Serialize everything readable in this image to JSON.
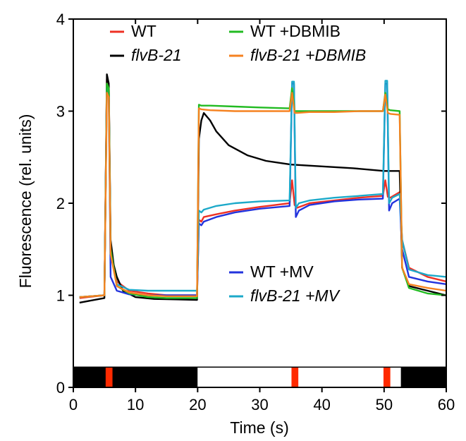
{
  "chart_data": {
    "type": "line",
    "title": "",
    "xlabel": "Time (s)",
    "ylabel": "Fluorescence (rel. units)",
    "xlim": [
      0,
      60
    ],
    "ylim": [
      0,
      4
    ],
    "xticks": [
      0,
      10,
      20,
      30,
      40,
      50,
      60
    ],
    "yticks": [
      0,
      1,
      2,
      3,
      4
    ],
    "grid": false,
    "legend": [
      {
        "series": "WT",
        "parts": [
          {
            "text": "WT",
            "italic": false
          }
        ],
        "color": "#ee3124"
      },
      {
        "series": "flvB-21",
        "parts": [
          {
            "text": "flvB-21",
            "italic": true
          }
        ],
        "color": "#000000"
      },
      {
        "series": "WT +DBMIB",
        "parts": [
          {
            "text": "WT +DBMIB",
            "italic": false
          }
        ],
        "color": "#22bb22"
      },
      {
        "series": "flvB-21 +DBMIB",
        "parts": [
          {
            "text": "flvB-21 +DBMIB",
            "italic": true
          }
        ],
        "color": "#f58220"
      },
      {
        "series": "WT +MV",
        "parts": [
          {
            "text": "WT +MV",
            "italic": false
          }
        ],
        "color": "#2233dd"
      },
      {
        "series": "flvB-21 +MV",
        "parts": [
          {
            "text": "flvB-21 +",
            "italic": true
          },
          {
            "text": "MV",
            "italic": true
          }
        ],
        "color": "#1ca9c9"
      }
    ],
    "series": [
      {
        "name": "WT",
        "color": "#ee3124",
        "x": [
          1,
          5,
          5.4,
          5.7,
          6,
          7,
          9,
          12,
          15,
          19.9,
          20.2,
          20.6,
          21,
          23,
          26,
          30,
          34.8,
          35.2,
          35.6,
          36,
          38,
          42,
          46,
          49.8,
          50.2,
          50.6,
          51,
          52.5,
          52.9,
          54,
          57,
          60
        ],
        "y": [
          0.97,
          1.0,
          3.35,
          3.3,
          1.5,
          1.15,
          1.05,
          1.02,
          1.0,
          1.0,
          1.82,
          1.8,
          1.85,
          1.88,
          1.92,
          1.96,
          2.0,
          2.25,
          1.98,
          1.95,
          2.0,
          2.03,
          2.06,
          2.08,
          2.25,
          2.07,
          2.06,
          2.12,
          1.6,
          1.3,
          1.2,
          1.15
        ]
      },
      {
        "name": "flvB-21",
        "color": "#000000",
        "x": [
          1,
          5,
          5.4,
          5.7,
          6,
          6.5,
          7,
          8,
          10,
          13,
          19.9,
          20.2,
          20.6,
          21,
          22,
          23,
          25,
          28,
          31,
          35,
          40,
          45,
          50,
          52.5,
          52.9,
          54,
          57,
          60
        ],
        "y": [
          0.92,
          0.97,
          3.4,
          3.3,
          1.6,
          1.33,
          1.2,
          1.05,
          0.98,
          0.96,
          0.95,
          2.7,
          2.9,
          2.98,
          2.9,
          2.78,
          2.63,
          2.52,
          2.46,
          2.42,
          2.4,
          2.38,
          2.35,
          2.35,
          1.3,
          1.1,
          1.05,
          1.0
        ]
      },
      {
        "name": "WT +DBMIB",
        "color": "#22bb22",
        "x": [
          1,
          5,
          5.4,
          5.7,
          6,
          7,
          9,
          12,
          15,
          19.9,
          20.2,
          20.6,
          22,
          26,
          30,
          34.8,
          35.2,
          35.6,
          36,
          38,
          42,
          46,
          49.8,
          50.2,
          50.6,
          51,
          52.5,
          52.9,
          54,
          57,
          60
        ],
        "y": [
          0.98,
          1.0,
          3.3,
          3.25,
          1.5,
          1.1,
          1.02,
          0.98,
          0.97,
          0.97,
          3.07,
          3.06,
          3.06,
          3.05,
          3.04,
          3.03,
          3.25,
          3.0,
          3.0,
          3.0,
          3.0,
          3.0,
          3.0,
          3.2,
          3.02,
          3.01,
          3.0,
          1.3,
          1.08,
          1.02,
          1.0
        ]
      },
      {
        "name": "flvB-21 +DBMIB",
        "color": "#f58220",
        "x": [
          1,
          5,
          5.4,
          5.7,
          6,
          7,
          9,
          12,
          15,
          19.9,
          20.2,
          20.6,
          22,
          26,
          30,
          34.8,
          35.2,
          35.6,
          36,
          38,
          42,
          46,
          49.8,
          50.2,
          50.6,
          51,
          52.5,
          52.9,
          54,
          57,
          60
        ],
        "y": [
          0.98,
          1.0,
          3.2,
          3.15,
          1.45,
          1.1,
          1.03,
          1.0,
          0.99,
          0.99,
          3.03,
          3.02,
          3.01,
          3.0,
          3.0,
          3.0,
          3.2,
          2.98,
          2.98,
          2.99,
          2.99,
          3.0,
          3.0,
          3.18,
          2.98,
          2.97,
          2.96,
          1.3,
          1.12,
          1.08,
          1.05
        ]
      },
      {
        "name": "WT +MV",
        "color": "#2233dd",
        "x": [
          1,
          5,
          5.4,
          5.7,
          6,
          7,
          9,
          12,
          15,
          19.9,
          20.2,
          20.6,
          21,
          23,
          26,
          30,
          34.8,
          35.2,
          35.5,
          35.8,
          36.3,
          38,
          42,
          46,
          49.8,
          50.2,
          50.5,
          50.8,
          51.3,
          52.5,
          52.9,
          54,
          57,
          60
        ],
        "y": [
          0.98,
          1.0,
          3.25,
          3.2,
          1.2,
          1.05,
          1.01,
          1.0,
          1.0,
          1.0,
          1.78,
          1.76,
          1.8,
          1.85,
          1.9,
          1.94,
          1.97,
          3.3,
          3.3,
          1.85,
          1.92,
          1.98,
          2.02,
          2.04,
          2.05,
          3.3,
          3.3,
          1.92,
          2.0,
          2.05,
          1.5,
          1.2,
          1.15,
          1.12
        ]
      },
      {
        "name": "flvB-21 +MV",
        "color": "#1ca9c9",
        "x": [
          1,
          5,
          5.4,
          5.7,
          6,
          7,
          9,
          12,
          15,
          19.9,
          20.2,
          20.6,
          21,
          23,
          26,
          30,
          34.8,
          35.2,
          35.5,
          35.8,
          36.3,
          38,
          42,
          46,
          49.8,
          50.2,
          50.5,
          50.8,
          51.3,
          52.5,
          52.9,
          54,
          57,
          60
        ],
        "y": [
          0.98,
          1.0,
          3.28,
          3.22,
          1.45,
          1.12,
          1.06,
          1.05,
          1.05,
          1.05,
          1.92,
          1.9,
          1.93,
          1.97,
          2.0,
          2.02,
          2.03,
          3.32,
          3.32,
          1.95,
          2.0,
          2.03,
          2.06,
          2.08,
          2.1,
          3.33,
          3.33,
          2.0,
          2.06,
          2.1,
          1.6,
          1.28,
          1.22,
          1.2
        ]
      }
    ],
    "light_bar": {
      "segments": [
        {
          "from": 0,
          "to": 20,
          "fill": "#000000"
        },
        {
          "from": 20,
          "to": 52.7,
          "fill": "#ffffff"
        },
        {
          "from": 52.7,
          "to": 60,
          "fill": "#000000"
        }
      ],
      "pulses": [
        {
          "from": 5.2,
          "to": 6.3,
          "fill": "#ff2a00"
        },
        {
          "from": 35.1,
          "to": 36.2,
          "fill": "#ff2a00"
        },
        {
          "from": 49.9,
          "to": 51.0,
          "fill": "#ff2a00"
        }
      ],
      "ylim": [
        0,
        0.22
      ]
    }
  }
}
